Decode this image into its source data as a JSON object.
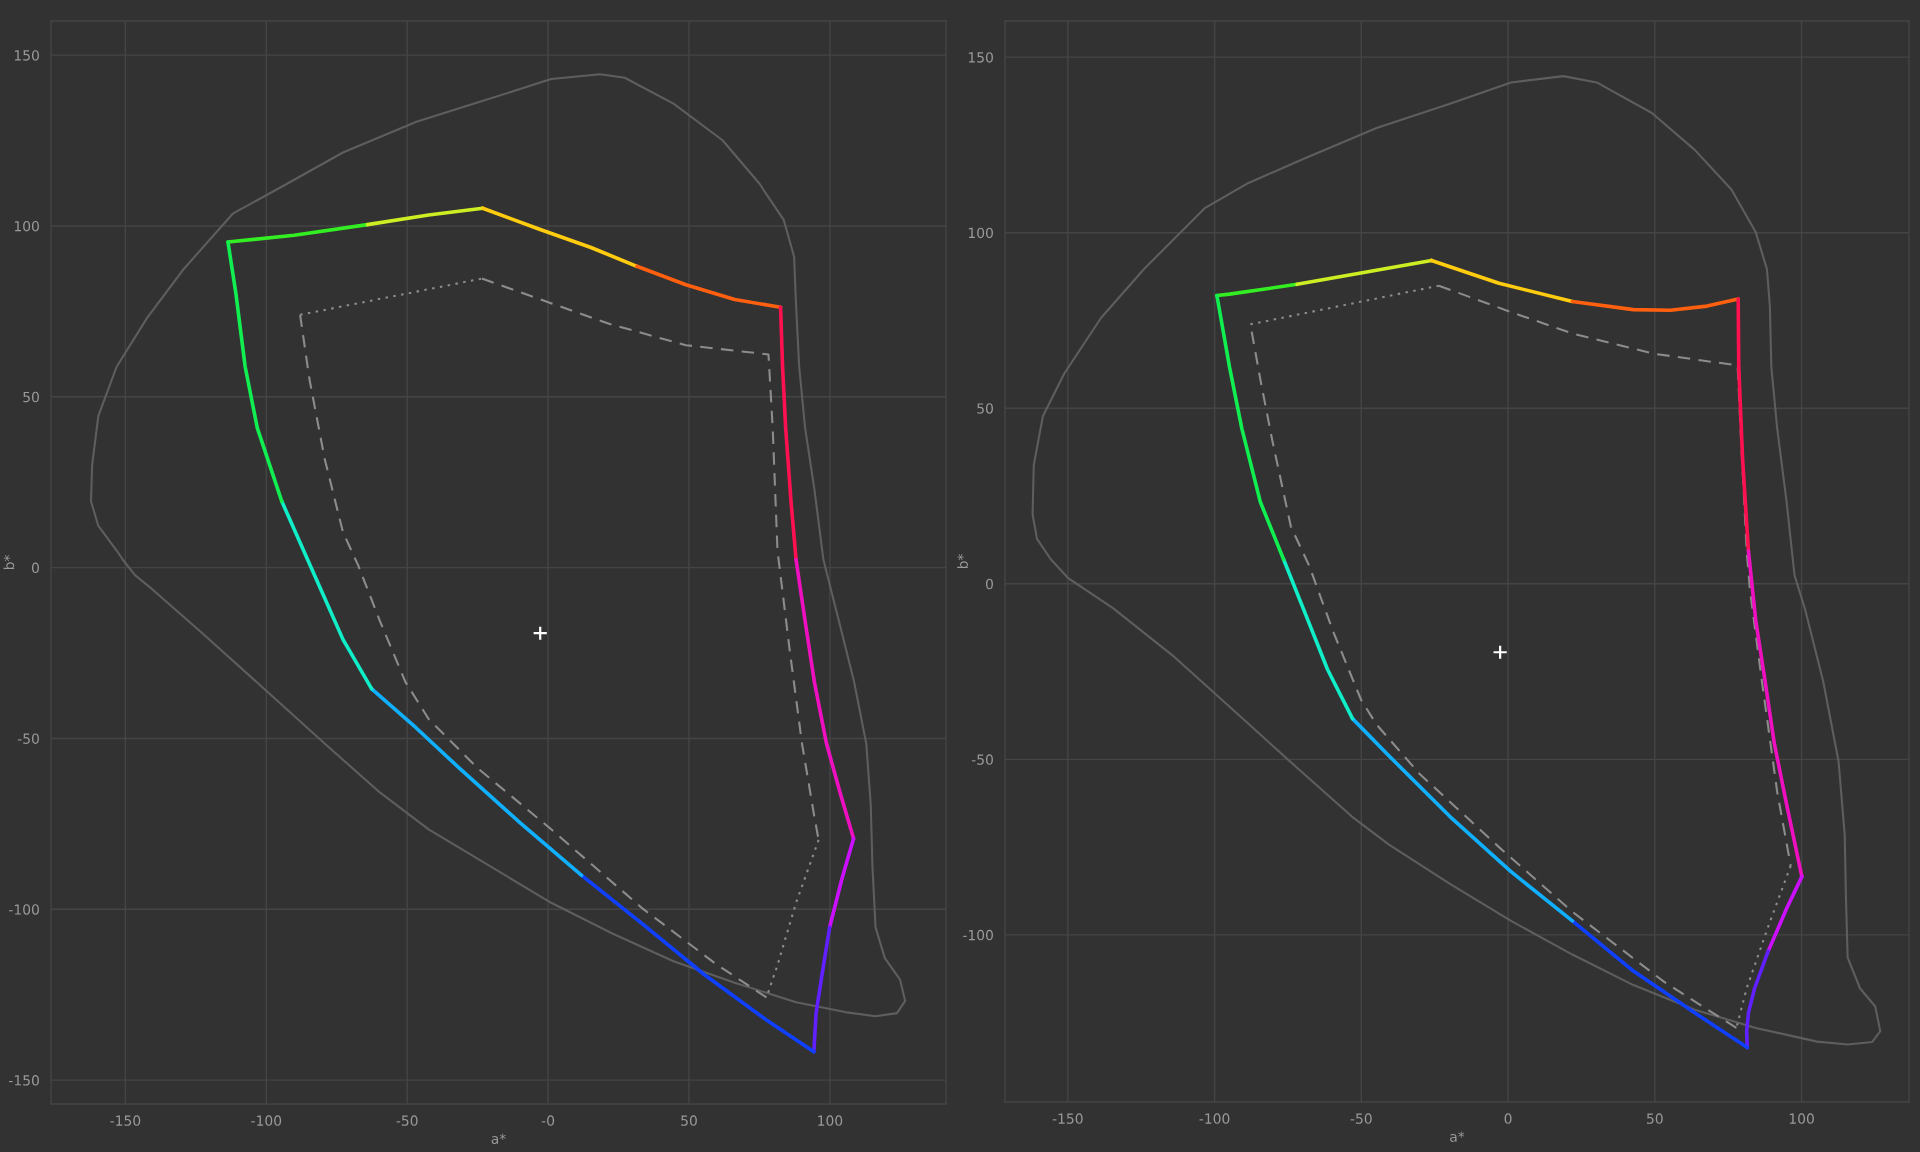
{
  "chart_data": [
    {
      "type": "line",
      "xlabel": "a*",
      "ylabel": "b*",
      "xlim": [
        -176.4,
        141.2
      ],
      "ylim": [
        -157,
        160
      ],
      "xticks": [
        -150,
        -100,
        -50,
        {
          "value": 0,
          "label": "-0"
        },
        50,
        100
      ],
      "yticks": [
        150,
        100,
        50,
        0,
        -50,
        -100,
        -150
      ],
      "grid": true,
      "series": [
        {
          "color": "#5e5e5e",
          "line_style": "solid",
          "x": [
            -162.2,
            -161.8,
            -159.6,
            -153.1,
            -142.3,
            -129.2,
            -111.9,
            -92.3,
            -72.8,
            -46.7,
            -22.8,
            1.1,
            18.5,
            27.2,
            44.5,
            61.9,
            74.9,
            83.6,
            87.3,
            88.0,
            89.1,
            91.2,
            94.5,
            97.7,
            103.2,
            108.6,
            112.9,
            114.5,
            115.1,
            116.2,
            119.5,
            124.9,
            126.7,
            null,
            126.7,
            123.8,
            116.2,
            105.4,
            88.0,
            66.2,
            44.5,
            22.8,
            1.1,
            -20.6,
            -42.4,
            -59.7,
            -79.3,
            -101.0,
            -122.7,
            -140.1,
            -146.6,
            -150.9,
            -153.1,
            -159.6,
            -162.2
          ],
          "values": [
            19.4,
            30.1,
            44.4,
            58.8,
            73.1,
            87.5,
            103.6,
            112.5,
            121.5,
            130.5,
            136.7,
            143.0,
            144.4,
            143.4,
            135.8,
            125.1,
            112.5,
            101.8,
            91.0,
            76.7,
            58.8,
            40.9,
            22.9,
            2.3,
            -15.6,
            -33.5,
            -51.5,
            -69.4,
            -87.4,
            -105.3,
            -114.3,
            -120.6,
            -126.8,
            null,
            -126.8,
            -130.4,
            -131.3,
            -130.1,
            -127.2,
            -121.5,
            -115.2,
            -107.1,
            -98.1,
            -87.4,
            -76.6,
            -65.8,
            -51.5,
            -35.3,
            -19.2,
            -6.6,
            -2.2,
            2.3,
            5.0,
            12.2,
            19.4
          ]
        },
        {
          "color": "#8c8c8c",
          "line_style": "dashed",
          "x": [
            -23.5,
            1.0,
            21.9,
            48.9,
            78.2,
            79.7,
            81.4,
            85.8,
            90.1,
            94.5,
            96.0
          ],
          "values": [
            84.6,
            77.4,
            71.3,
            65.1,
            62.4,
            40.9,
            5.0,
            -24.6,
            -51.5,
            -73.0,
            -79.7
          ]
        },
        {
          "color": "#8c8c8c",
          "line_style": "dotted",
          "x": [
            96.0,
            88.0,
            81.5,
            77.5
          ],
          "values": [
            -79.7,
            -98.1,
            -116.1,
            -125.8
          ]
        },
        {
          "color": "#8c8c8c",
          "line_style": "dashed",
          "x": [
            77.5,
            59.7,
            33.7,
            1.1,
            -25.0,
            -42.4,
            -50.6,
            -59.7,
            -67.3,
            -72.8,
            -79.3,
            -84.7,
            -88.0
          ],
          "values": [
            -125.8,
            -116.1,
            -99.9,
            -76.6,
            -58.7,
            -44.3,
            -33.5,
            -15.6,
            0.5,
            10.4,
            31.9,
            55.2,
            74.0
          ]
        },
        {
          "color": "#8c8c8c",
          "line_style": "dotted",
          "x": [
            -88.0,
            -23.5
          ],
          "values": [
            74.0,
            84.6
          ]
        },
        {
          "color": "#33ee22",
          "line_style": "solid",
          "x": [
            -113.6,
            -90.1,
            -64.1
          ],
          "values": [
            95.3,
            97.3,
            100.4
          ]
        },
        {
          "color": "#ccee22",
          "line_style": "solid",
          "x": [
            -64.1,
            -42.4,
            -23.2
          ],
          "values": [
            100.4,
            103.2,
            105.2
          ]
        },
        {
          "color": "#ffcc10",
          "line_style": "solid",
          "x": [
            -23.2,
            -3.3,
            15.2,
            31.5
          ],
          "values": [
            105.2,
            99.1,
            93.7,
            88.2
          ]
        },
        {
          "color": "#ff6010",
          "line_style": "solid",
          "x": [
            31.5,
            48.9,
            66.2,
            82.5
          ],
          "values": [
            88.2,
            82.8,
            78.5,
            76.2
          ]
        },
        {
          "color": "#ff1050",
          "line_style": "solid",
          "x": [
            82.5,
            83.2,
            84.3,
            86.2,
            88.0
          ],
          "values": [
            76.2,
            58.8,
            40.9,
            19.4,
            2.3
          ]
        },
        {
          "color": "#ee10c0",
          "line_style": "solid",
          "x": [
            88.0,
            91.2,
            94.5,
            98.8,
            103.6,
            108.4
          ],
          "values": [
            2.3,
            -15.6,
            -33.5,
            -51.5,
            -65.8,
            -79.3
          ]
        },
        {
          "color": "#cc10ff",
          "line_style": "solid",
          "x": [
            108.4,
            104.3,
            99.9
          ],
          "values": [
            -79.3,
            -91.0,
            -105.3
          ]
        },
        {
          "color": "#6020ff",
          "line_style": "solid",
          "x": [
            99.9,
            97.1,
            95.1,
            94.3
          ],
          "values": [
            -105.3,
            -119.7,
            -130.4,
            -141.7
          ]
        },
        {
          "color": "#1040ff",
          "line_style": "solid",
          "x": [
            94.3,
            77.1,
            55.4,
            33.7,
            11.9
          ],
          "values": [
            -141.7,
            -132.2,
            -119.1,
            -104.4,
            -90.1
          ]
        },
        {
          "color": "#10b0ff",
          "line_style": "solid",
          "x": [
            11.9,
            -9.8,
            -31.5,
            -46.7,
            -55.4,
            -62.6
          ],
          "values": [
            -90.1,
            -74.8,
            -58.7,
            -47.0,
            -40.7,
            -35.5
          ]
        },
        {
          "color": "#10eec8",
          "line_style": "solid",
          "x": [
            -62.6,
            -72.8,
            -81.5,
            -94.5
          ],
          "values": [
            -35.5,
            -21.0,
            -4.8,
            19.4
          ]
        },
        {
          "color": "#10ee50",
          "line_style": "solid",
          "x": [
            -94.5,
            -103.2,
            -107.5,
            -110.8,
            -113.6
          ],
          "values": [
            19.4,
            40.9,
            58.8,
            80.3,
            95.3
          ]
        },
        {
          "type": "scatter",
          "marker": "cross",
          "color": "#ffffff",
          "x": [
            -2.8
          ],
          "values": [
            -19.2
          ]
        }
      ]
    },
    {
      "type": "line",
      "xlabel": "a*",
      "ylabel": "b*",
      "xlim": [
        -171.4,
        136.6
      ],
      "ylim": [
        -147.6,
        160.3
      ],
      "xticks": [
        -150,
        -100,
        -50,
        0,
        50,
        100
      ],
      "yticks": [
        150,
        100,
        50,
        0,
        -50,
        -100
      ],
      "grid": true,
      "series": [
        {
          "color": "#5e5e5e",
          "line_style": "solid",
          "x": [
            -162.0,
            -161.6,
            -158.5,
            -151.2,
            -138.7,
            -124.1,
            -103.2,
            -88.6,
            -69.8,
            -44.8,
            -19.8,
            1.0,
            18.8,
            30.2,
            49.0,
            63.6,
            76.1,
            84.4,
            88.2,
            89.2,
            89.7,
            91.7,
            94.9,
            97.6,
            101.1,
            107.4,
            112.6,
            114.7,
            115.1,
            115.7,
            119.9,
            125.1,
            126.8,
            null,
            126.8,
            124.1,
            115.7,
            105.3,
            84.4,
            63.6,
            42.7,
            21.9,
            1.0,
            -19.8,
            -40.7,
            -53.2,
            -71.9,
            -92.8,
            -113.6,
            -134.5,
            -150.0,
            -155.8,
            -160.5,
            -162.0
          ],
          "values": [
            19.8,
            33.8,
            47.7,
            59.9,
            75.7,
            89.6,
            107.1,
            114.1,
            121.0,
            129.8,
            136.7,
            142.8,
            144.6,
            142.8,
            134.1,
            123.6,
            112.3,
            100.1,
            89.6,
            79.1,
            61.7,
            44.2,
            23.3,
            2.4,
            -7.0,
            -27.9,
            -50.6,
            -71.6,
            -89.0,
            -106.5,
            -115.2,
            -120.4,
            -127.4,
            null,
            -127.4,
            -130.5,
            -131.2,
            -130.4,
            -126.5,
            -121.3,
            -114.3,
            -105.6,
            -96.0,
            -85.5,
            -74.2,
            -66.3,
            -52.4,
            -36.6,
            -20.9,
            -7.0,
            1.7,
            7.0,
            12.8,
            19.8
          ]
        },
        {
          "color": "#8c8c8c",
          "line_style": "dashed",
          "x": [
            -23.6,
            1.0,
            21.9,
            50.0,
            78.2,
            79.2,
            81.3,
            82.4,
            86.5,
            91.7,
            96.3
          ],
          "values": [
            84.9,
            77.4,
            71.3,
            65.5,
            62.2,
            44.2,
            9.3,
            -1.7,
            -27.9,
            -59.3,
            -80.3
          ]
        },
        {
          "color": "#8c8c8c",
          "line_style": "dotted",
          "x": [
            96.3,
            88.6,
            81.3,
            77.8
          ],
          "values": [
            -80.3,
            -97.7,
            -115.2,
            -126.5
          ]
        },
        {
          "color": "#8c8c8c",
          "line_style": "dashed",
          "x": [
            77.8,
            53.2,
            21.9,
            -3.1,
            -30.2,
            -44.8,
            -50.0,
            -59.4,
            -67.8,
            -74.0,
            -80.3,
            -84.4,
            -87.8
          ],
          "values": [
            -126.5,
            -113.4,
            -93.4,
            -75.0,
            -54.1,
            -40.1,
            -33.2,
            -14.0,
            5.2,
            16.3,
            40.7,
            58.2,
            73.9
          ]
        },
        {
          "color": "#8c8c8c",
          "line_style": "dotted",
          "x": [
            -87.8,
            -23.6
          ],
          "values": [
            73.9,
            84.9
          ]
        },
        {
          "color": "#33ee22",
          "line_style": "solid",
          "x": [
            -99.2,
            -94.9,
            -71.9
          ],
          "values": [
            82.1,
            82.5,
            85.3
          ]
        },
        {
          "color": "#ccee22",
          "line_style": "solid",
          "x": [
            -71.9,
            -51.1,
            -26.1
          ],
          "values": [
            85.3,
            88.4,
            92.1
          ]
        },
        {
          "color": "#ffcc10",
          "line_style": "solid",
          "x": [
            -26.1,
            -3.1,
            21.9
          ],
          "values": [
            92.1,
            85.6,
            80.4
          ]
        },
        {
          "color": "#ff6010",
          "line_style": "solid",
          "x": [
            21.9,
            42.7,
            55.3,
            67.8,
            78.4
          ],
          "values": [
            80.4,
            78.1,
            77.9,
            79.1,
            81.1
          ]
        },
        {
          "color": "#ff1050",
          "line_style": "solid",
          "x": [
            78.4,
            78.6,
            79.9,
            81.9
          ],
          "values": [
            81.1,
            61.7,
            35.5,
            9.3
          ]
        },
        {
          "color": "#ee10c0",
          "line_style": "solid",
          "x": [
            81.9,
            84.4,
            87.6,
            90.7,
            94.9,
            100.1
          ],
          "values": [
            9.3,
            -10.5,
            -27.9,
            -45.4,
            -62.8,
            -83.4
          ]
        },
        {
          "color": "#cc10ff",
          "line_style": "solid",
          "x": [
            100.1,
            94.9,
            88.6
          ],
          "values": [
            -83.4,
            -92.5,
            -104.7
          ]
        },
        {
          "color": "#6020ff",
          "line_style": "solid",
          "x": [
            88.6,
            84.0,
            81.9,
            81.3,
            81.5
          ],
          "values": [
            -104.7,
            -115.2,
            -122.2,
            -127.4,
            -132.1
          ]
        },
        {
          "color": "#1040ff",
          "line_style": "solid",
          "x": [
            81.5,
            63.6,
            42.7,
            21.9
          ],
          "values": [
            -132.1,
            -122.2,
            -110.3,
            -96.0
          ]
        },
        {
          "color": "#10b0ff",
          "line_style": "solid",
          "x": [
            21.9,
            1.0,
            -19.8,
            -40.7,
            -53.0
          ],
          "values": [
            -96.0,
            -82.0,
            -66.3,
            -48.9,
            -38.4
          ]
        },
        {
          "color": "#10eec8",
          "line_style": "solid",
          "x": [
            -53.0,
            -61.5,
            -69.8,
            -76.5
          ],
          "values": [
            -38.4,
            -24.4,
            -7.0,
            7.0
          ]
        },
        {
          "color": "#10ee50",
          "line_style": "solid",
          "x": [
            -76.5,
            -84.4,
            -90.7,
            -94.9,
            -99.2
          ],
          "values": [
            7.0,
            23.3,
            44.2,
            61.7,
            82.1
          ]
        },
        {
          "type": "scatter",
          "marker": "cross",
          "color": "#ffffff",
          "x": [
            -2.7
          ],
          "values": [
            -19.5
          ]
        }
      ]
    }
  ]
}
